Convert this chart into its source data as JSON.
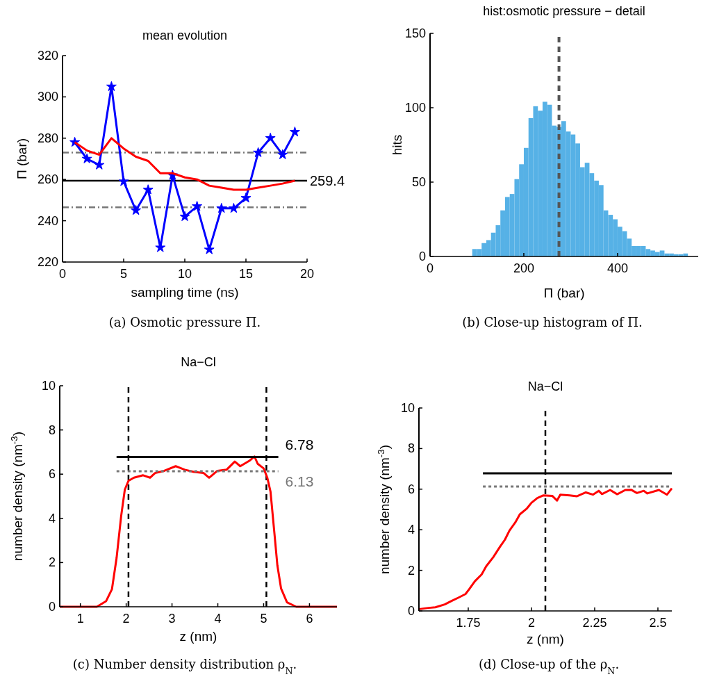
{
  "chart_data": [
    {
      "type": "line",
      "title": "mean evolution",
      "xlabel": "sampling time (ns)",
      "ylabel": "Π (bar)",
      "annotations": [
        "(a) Osmotic pressure Π."
      ],
      "xlim": [
        0,
        20
      ],
      "xticks": [
        0,
        5,
        10,
        15,
        20
      ],
      "ylim": [
        220,
        320
      ],
      "yticks": [
        220,
        240,
        260,
        280,
        300,
        320
      ],
      "marker": "star",
      "series": [
        {
          "color": "#0000ff",
          "x": [
            1,
            2,
            3,
            4,
            5,
            6,
            7,
            8,
            9,
            10,
            11,
            12,
            13,
            14,
            15,
            16,
            17,
            18,
            19
          ],
          "values": [
            278,
            270,
            267,
            305,
            259,
            245,
            255,
            227,
            262,
            242,
            247,
            226,
            246,
            246,
            251,
            273,
            280,
            272,
            283
          ]
        },
        {
          "color": "#ff0000",
          "marker": "none",
          "x": [
            1,
            2,
            3,
            4,
            5,
            6,
            7,
            8,
            9,
            10,
            11,
            12,
            13,
            14,
            15,
            16,
            17,
            18,
            19
          ],
          "values": [
            278,
            274,
            272,
            280,
            275,
            271,
            269,
            263,
            263,
            261,
            260,
            257,
            256,
            255,
            255,
            256,
            257,
            258,
            259.4
          ]
        }
      ],
      "ref_lines": [
        {
          "axis": "y",
          "value": 259.4,
          "label": "259.4",
          "color": "#000000",
          "line_style": "solid"
        },
        {
          "axis": "y",
          "value": 273,
          "color": "#777777",
          "line_style": "dashdot"
        },
        {
          "axis": "y",
          "value": 246.5,
          "color": "#777777",
          "line_style": "dashdot"
        }
      ]
    },
    {
      "type": "histogram",
      "title": "hist:osmotic pressure − detail",
      "xlabel": "Π (bar)",
      "ylabel": "hits",
      "annotations": [
        "(b) Close-up histogram of Π."
      ],
      "xlim": [
        0,
        572
      ],
      "xticks": [
        0,
        200,
        400
      ],
      "ylim": [
        0,
        150
      ],
      "yticks": [
        0,
        50,
        100,
        150
      ],
      "color": "#56b1e6",
      "bins": [
        90,
        100,
        110,
        120,
        130,
        140,
        150,
        160,
        170,
        180,
        190,
        200,
        210,
        220,
        230,
        240,
        250,
        260,
        270,
        280,
        290,
        300,
        310,
        320,
        330,
        340,
        350,
        360,
        370,
        380,
        390,
        400,
        410,
        420,
        430,
        440,
        450,
        460,
        470,
        480,
        490,
        500,
        510,
        520,
        530,
        540,
        550
      ],
      "values": [
        5,
        5,
        9,
        11,
        16,
        21,
        31,
        40,
        42,
        52,
        62,
        73,
        93,
        101,
        98,
        104,
        102,
        88,
        87,
        91,
        84,
        82,
        76,
        60,
        63,
        56,
        51,
        48,
        31,
        28,
        25,
        20,
        17,
        12,
        7,
        7,
        7,
        5,
        4,
        3,
        4,
        2,
        2,
        1.5,
        1.5,
        2
      ],
      "ref_lines": [
        {
          "axis": "x",
          "value": 275,
          "color": "#555555",
          "line_style": "dashed"
        }
      ]
    },
    {
      "type": "line",
      "title": "Na−Cl",
      "xlabel": "z (nm)",
      "ylabel": "number density (nm$^{-3}$)",
      "annotations": [
        "(c) Number density distribution ρ$_{N}$."
      ],
      "xlim": [
        0.55,
        6.6
      ],
      "xticks": [
        1,
        2,
        3,
        4,
        5,
        6
      ],
      "ylim": [
        0,
        10
      ],
      "yticks": [
        0,
        2,
        4,
        6,
        8,
        10
      ],
      "series": [
        {
          "color": "#ff0000",
          "x": [
            0.55,
            1.36,
            1.56,
            1.69,
            1.79,
            1.89,
            1.97,
            2.05,
            2.17,
            2.37,
            2.52,
            2.63,
            2.83,
            3.08,
            3.28,
            3.48,
            3.69,
            3.81,
            3.99,
            4.19,
            4.37,
            4.49,
            4.7,
            4.8,
            4.87,
            5.0,
            5.08,
            5.15,
            5.23,
            5.3,
            5.38,
            5.51,
            5.71,
            6.6
          ],
          "values": [
            0,
            0,
            0.25,
            0.8,
            2.2,
            4.1,
            5.3,
            5.7,
            5.84,
            5.95,
            5.84,
            6.05,
            6.15,
            6.36,
            6.2,
            6.1,
            6.05,
            5.84,
            6.15,
            6.2,
            6.57,
            6.36,
            6.62,
            6.8,
            6.47,
            6.26,
            5.84,
            5.21,
            3.44,
            1.87,
            0.83,
            0.2,
            0,
            0
          ]
        },
        {
          "name": "6.78",
          "color": "#000000",
          "x": [
            1.79,
            5.32
          ],
          "values": [
            6.78,
            6.78
          ]
        },
        {
          "name": "6.13",
          "color": "#777777",
          "line_style": "dotted",
          "x": [
            1.79,
            5.32
          ],
          "values": [
            6.13,
            6.13
          ]
        }
      ],
      "ref_lines": [
        {
          "axis": "x",
          "value": 2.05,
          "color": "#000000",
          "line_style": "dashed"
        },
        {
          "axis": "x",
          "value": 5.06,
          "color": "#000000",
          "line_style": "dashed"
        }
      ]
    },
    {
      "type": "line",
      "title": "Na−Cl",
      "xlabel": "z (nm)",
      "ylabel": "number density (nm$^{-3}$)",
      "annotations": [
        "(d) Close-up of the ρ$_{N}$."
      ],
      "xlim": [
        1.555,
        2.555
      ],
      "xticks": [
        1.75,
        2,
        2.25,
        2.5
      ],
      "ylim": [
        0,
        10
      ],
      "yticks": [
        0,
        2,
        4,
        6,
        8,
        10
      ],
      "series": [
        {
          "color": "#ff0000",
          "x": [
            1.556,
            1.593,
            1.62,
            1.657,
            1.684,
            1.712,
            1.739,
            1.753,
            1.776,
            1.803,
            1.821,
            1.849,
            1.876,
            1.895,
            1.913,
            1.936,
            1.954,
            1.982,
            2.0,
            2.023,
            2.046,
            2.082,
            2.101,
            2.114,
            2.151,
            2.179,
            2.215,
            2.243,
            2.266,
            2.279,
            2.311,
            2.339,
            2.371,
            2.394,
            2.417,
            2.444,
            2.458,
            2.504,
            2.536,
            2.555
          ],
          "values": [
            0.09,
            0.15,
            0.18,
            0.32,
            0.49,
            0.66,
            0.83,
            1.06,
            1.46,
            1.8,
            2.2,
            2.65,
            3.17,
            3.51,
            3.96,
            4.36,
            4.76,
            5.05,
            5.33,
            5.56,
            5.69,
            5.67,
            5.44,
            5.73,
            5.69,
            5.65,
            5.84,
            5.73,
            5.92,
            5.76,
            5.96,
            5.75,
            5.96,
            5.97,
            5.81,
            5.92,
            5.79,
            5.96,
            5.73,
            6.04
          ]
        },
        {
          "color": "#000000",
          "x": [
            1.808,
            2.555
          ],
          "values": [
            6.78,
            6.78
          ]
        },
        {
          "color": "#777777",
          "line_style": "dotted",
          "x": [
            1.808,
            2.555
          ],
          "values": [
            6.13,
            6.13
          ]
        }
      ],
      "ref_lines": [
        {
          "axis": "x",
          "value": 2.055,
          "color": "#000000",
          "line_style": "dashed"
        }
      ]
    }
  ]
}
